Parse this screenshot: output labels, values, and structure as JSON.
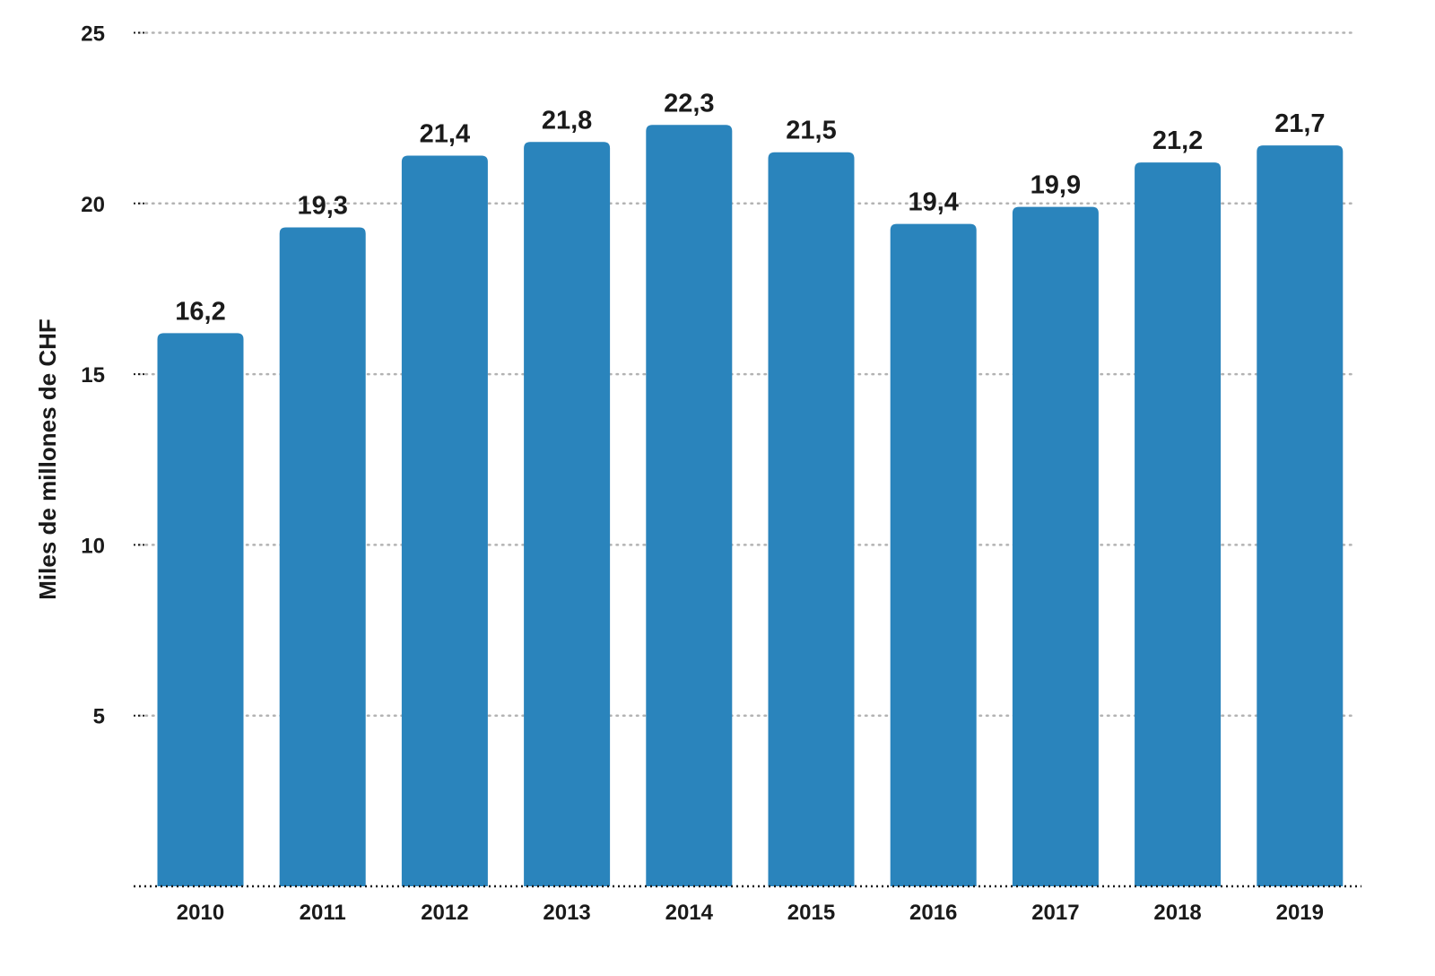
{
  "chart_data": {
    "type": "bar",
    "categories": [
      "2010",
      "2011",
      "2012",
      "2013",
      "2014",
      "2015",
      "2016",
      "2017",
      "2018",
      "2019"
    ],
    "values": [
      16.2,
      19.3,
      21.4,
      21.8,
      22.3,
      21.5,
      19.4,
      19.9,
      21.2,
      21.7
    ],
    "value_labels": [
      "16,2",
      "19,3",
      "21,4",
      "21,8",
      "22,3",
      "21,5",
      "19,4",
      "19,9",
      "21,2",
      "21,7"
    ],
    "title": "",
    "xlabel": "",
    "ylabel": "Miles de millones de CHF",
    "ylim": [
      0,
      25
    ],
    "yticks": [
      5,
      10,
      15,
      20,
      25
    ],
    "grid": true,
    "legend": "none",
    "colors": {
      "bar": "#2A84BC",
      "grid": "#b3b3b3",
      "axis": "#1a1a1a"
    }
  }
}
